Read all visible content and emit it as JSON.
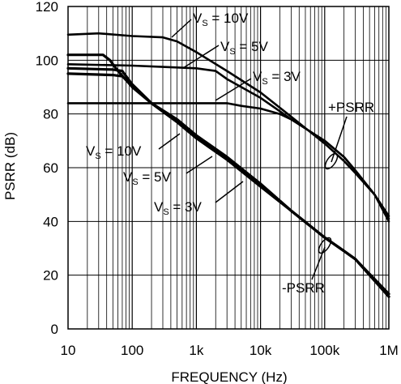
{
  "chart_data": {
    "type": "line",
    "xlabel": "FREQUENCY (Hz)",
    "ylabel": "PSRR (dB)",
    "x_scale": "log",
    "xlim": [
      10,
      1000000
    ],
    "ylim": [
      0,
      120
    ],
    "grid": true,
    "x_ticks": [
      {
        "value": 10,
        "label": "10"
      },
      {
        "value": 100,
        "label": "100"
      },
      {
        "value": 1000,
        "label": "1k"
      },
      {
        "value": 10000,
        "label": "10k"
      },
      {
        "value": 100000,
        "label": "100k"
      },
      {
        "value": 1000000,
        "label": "1M"
      }
    ],
    "y_ticks": [
      0,
      20,
      40,
      60,
      80,
      100,
      120
    ],
    "series": [
      {
        "group": "+PSRR",
        "vs": "10V",
        "points": [
          [
            10,
            109.5
          ],
          [
            30,
            110
          ],
          [
            100,
            109
          ],
          [
            300,
            108.5
          ],
          [
            500,
            107
          ],
          [
            1000,
            103
          ],
          [
            3000,
            96
          ],
          [
            10000,
            88
          ],
          [
            30000,
            79
          ],
          [
            100000,
            69
          ],
          [
            200000,
            62.5
          ],
          [
            300000,
            58
          ],
          [
            600000,
            50
          ],
          [
            1000000,
            40
          ]
        ]
      },
      {
        "group": "+PSRR",
        "vs": "5V",
        "points": [
          [
            10,
            98.5
          ],
          [
            100,
            98
          ],
          [
            300,
            97.5
          ],
          [
            1000,
            97
          ],
          [
            2000,
            96
          ],
          [
            3000,
            93
          ],
          [
            10000,
            86
          ],
          [
            20000,
            81
          ],
          [
            30000,
            78
          ],
          [
            100000,
            70
          ],
          [
            200000,
            64
          ],
          [
            300000,
            59
          ],
          [
            600000,
            50
          ],
          [
            1000000,
            42
          ]
        ]
      },
      {
        "group": "+PSRR",
        "vs": "3V",
        "points": [
          [
            10,
            84
          ],
          [
            100,
            84
          ],
          [
            1000,
            84
          ],
          [
            3000,
            84
          ],
          [
            5000,
            83
          ],
          [
            10000,
            82
          ],
          [
            20000,
            80
          ],
          [
            30000,
            78
          ],
          [
            100000,
            70
          ],
          [
            200000,
            64
          ],
          [
            300000,
            59
          ],
          [
            600000,
            50
          ],
          [
            1000000,
            41
          ]
        ]
      },
      {
        "group": "-PSRR",
        "vs": "10V",
        "points": [
          [
            10,
            102
          ],
          [
            35,
            102
          ],
          [
            45,
            100
          ],
          [
            60,
            96
          ],
          [
            100,
            90
          ],
          [
            200,
            84
          ],
          [
            500,
            78
          ],
          [
            1000,
            72
          ],
          [
            3000,
            64
          ],
          [
            10000,
            54
          ],
          [
            30000,
            44
          ],
          [
            100000,
            34
          ],
          [
            200000,
            29
          ],
          [
            300000,
            26
          ],
          [
            1000000,
            13
          ]
        ]
      },
      {
        "group": "-PSRR",
        "vs": "5V",
        "points": [
          [
            10,
            97
          ],
          [
            50,
            96.5
          ],
          [
            70,
            96
          ],
          [
            100,
            91
          ],
          [
            200,
            84
          ],
          [
            500,
            77
          ],
          [
            1000,
            71
          ],
          [
            3000,
            63
          ],
          [
            10000,
            54
          ],
          [
            30000,
            44
          ],
          [
            100000,
            34
          ],
          [
            200000,
            29
          ],
          [
            300000,
            26
          ],
          [
            1000000,
            12
          ]
        ]
      },
      {
        "group": "-PSRR",
        "vs": "3V",
        "points": [
          [
            10,
            95
          ],
          [
            50,
            94.5
          ],
          [
            70,
            94
          ],
          [
            100,
            91
          ],
          [
            200,
            84
          ],
          [
            500,
            77
          ],
          [
            1000,
            71
          ],
          [
            3000,
            63
          ],
          [
            10000,
            53
          ],
          [
            30000,
            44
          ],
          [
            100000,
            34
          ],
          [
            200000,
            29
          ],
          [
            300000,
            26
          ],
          [
            1000000,
            12
          ]
        ]
      }
    ],
    "annotations": {
      "plus_psrr": "+PSRR",
      "minus_psrr": "-PSRR",
      "vs_prefix": "V",
      "vs_sub": "S",
      "vs_10": " = 10V",
      "vs_5": " = 5V",
      "vs_3": " = 3V"
    }
  }
}
